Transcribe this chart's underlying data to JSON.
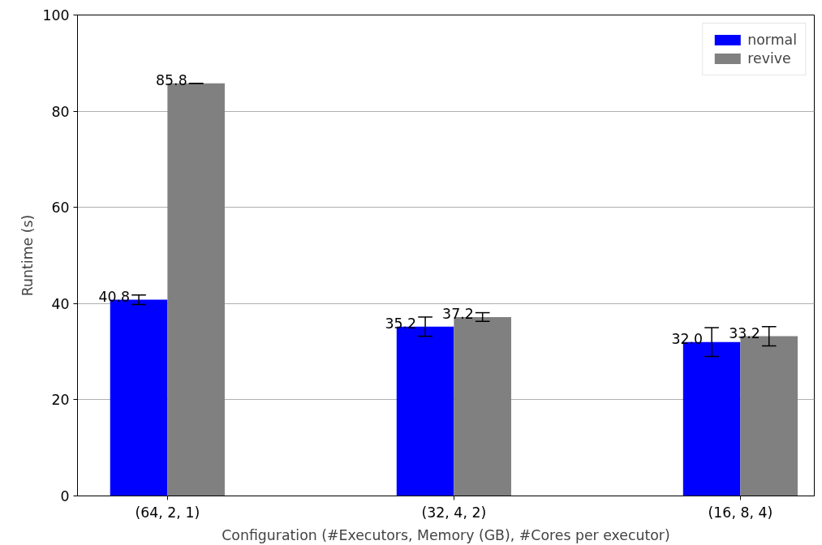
{
  "chart_data": {
    "type": "bar",
    "xlabel": "Configuration (#Executors, Memory (GB), #Cores per executor)",
    "ylabel": "Runtime (s)",
    "categories": [
      "(64, 2, 1)",
      "(32, 4, 2)",
      "(16, 8, 4)"
    ],
    "series": [
      {
        "name": "normal",
        "color": "#0000ff",
        "values": [
          40.8,
          35.2,
          32.0
        ],
        "errors": [
          1.0,
          2.0,
          3.0
        ],
        "value_labels": [
          "40.8",
          "35.2",
          "32.0"
        ]
      },
      {
        "name": "revive",
        "color": "#808080",
        "values": [
          85.8,
          37.2,
          33.2
        ],
        "errors": [
          0,
          0.9,
          2.0
        ],
        "value_labels": [
          "85.8",
          "37.2",
          "33.2"
        ]
      }
    ],
    "ylim": [
      0,
      100
    ],
    "yticks": [
      0,
      20,
      40,
      60,
      80,
      100
    ],
    "grid": "y",
    "legend": "top right"
  }
}
